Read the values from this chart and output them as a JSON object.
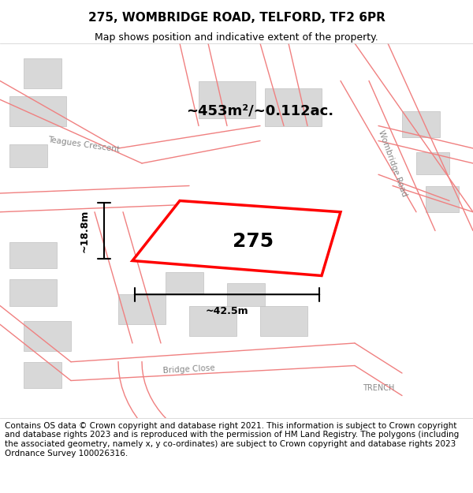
{
  "title": "275, WOMBRIDGE ROAD, TELFORD, TF2 6PR",
  "subtitle": "Map shows position and indicative extent of the property.",
  "area_label": "~453m²/~0.112ac.",
  "plot_number": "275",
  "dim_width": "~42.5m",
  "dim_height": "~18.8m",
  "footer": "Contains OS data © Crown copyright and database right 2021. This information is subject to Crown copyright and database rights 2023 and is reproduced with the permission of HM Land Registry. The polygons (including the associated geometry, namely x, y co-ordinates) are subject to Crown copyright and database rights 2023 Ordnance Survey 100026316.",
  "bg_color": "#f5f5f5",
  "map_bg": "#f0f0f0",
  "plot_color": "#ff0000",
  "road_color": "#f08080",
  "building_color": "#d8d8d8",
  "title_fontsize": 11,
  "subtitle_fontsize": 9,
  "footer_fontsize": 7.5
}
